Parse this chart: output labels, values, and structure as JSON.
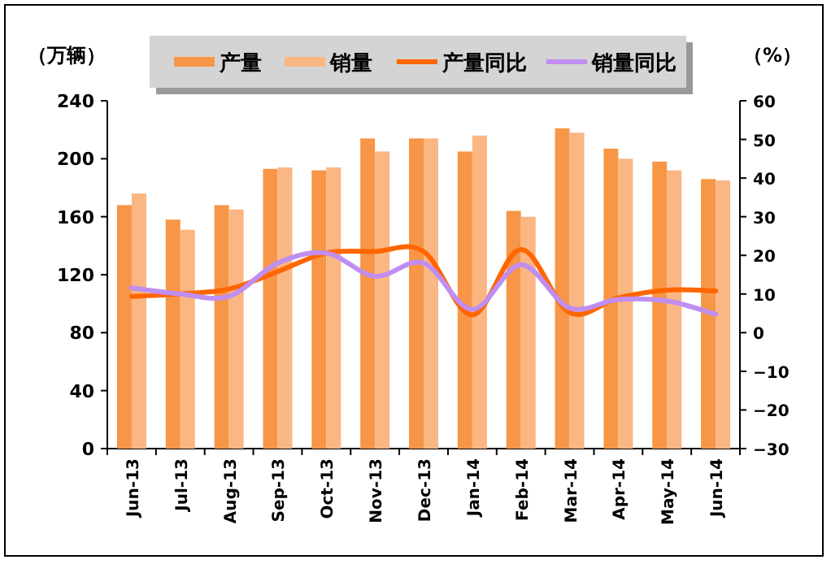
{
  "chart_data": {
    "type": "bar",
    "ylabel": "（万辆）",
    "y2label": "（%）",
    "categories": [
      "Jun-13",
      "Jul-13",
      "Aug-13",
      "Sep-13",
      "Oct-13",
      "Nov-13",
      "Dec-13",
      "Jan-14",
      "Feb-14",
      "Mar-14",
      "Apr-14",
      "May-14",
      "Jun-14"
    ],
    "ylim": [
      0,
      240
    ],
    "yticks": [
      0,
      40,
      80,
      120,
      160,
      200,
      240
    ],
    "y2lim": [
      -30,
      60
    ],
    "y2ticks": [
      -30,
      -20,
      -10,
      0,
      10,
      20,
      30,
      40,
      50,
      60
    ],
    "legend": "top",
    "grid": false,
    "series": [
      {
        "name": "产量",
        "color": "#f79646",
        "values": [
          168,
          158,
          168,
          193,
          192,
          214,
          214,
          205,
          164,
          221,
          207,
          198,
          186
        ]
      },
      {
        "name": "销量",
        "color": "#fab683",
        "values": [
          176,
          151,
          165,
          194,
          194,
          205,
          214,
          216,
          160,
          218,
          200,
          192,
          185
        ]
      },
      {
        "name": "产量同比",
        "type": "line",
        "axis": "y2",
        "color": "#ff6600",
        "values": [
          9.4,
          10,
          11.3,
          15.8,
          20.6,
          21,
          21,
          4.6,
          21.5,
          5.2,
          9,
          11,
          10.8
        ]
      },
      {
        "name": "销量同比",
        "type": "line",
        "axis": "y2",
        "color": "#c08ef0",
        "values": [
          11.6,
          10,
          9.4,
          18,
          20.6,
          14.6,
          18,
          6,
          17.6,
          6.4,
          8.6,
          8.2,
          4.8
        ]
      }
    ]
  }
}
